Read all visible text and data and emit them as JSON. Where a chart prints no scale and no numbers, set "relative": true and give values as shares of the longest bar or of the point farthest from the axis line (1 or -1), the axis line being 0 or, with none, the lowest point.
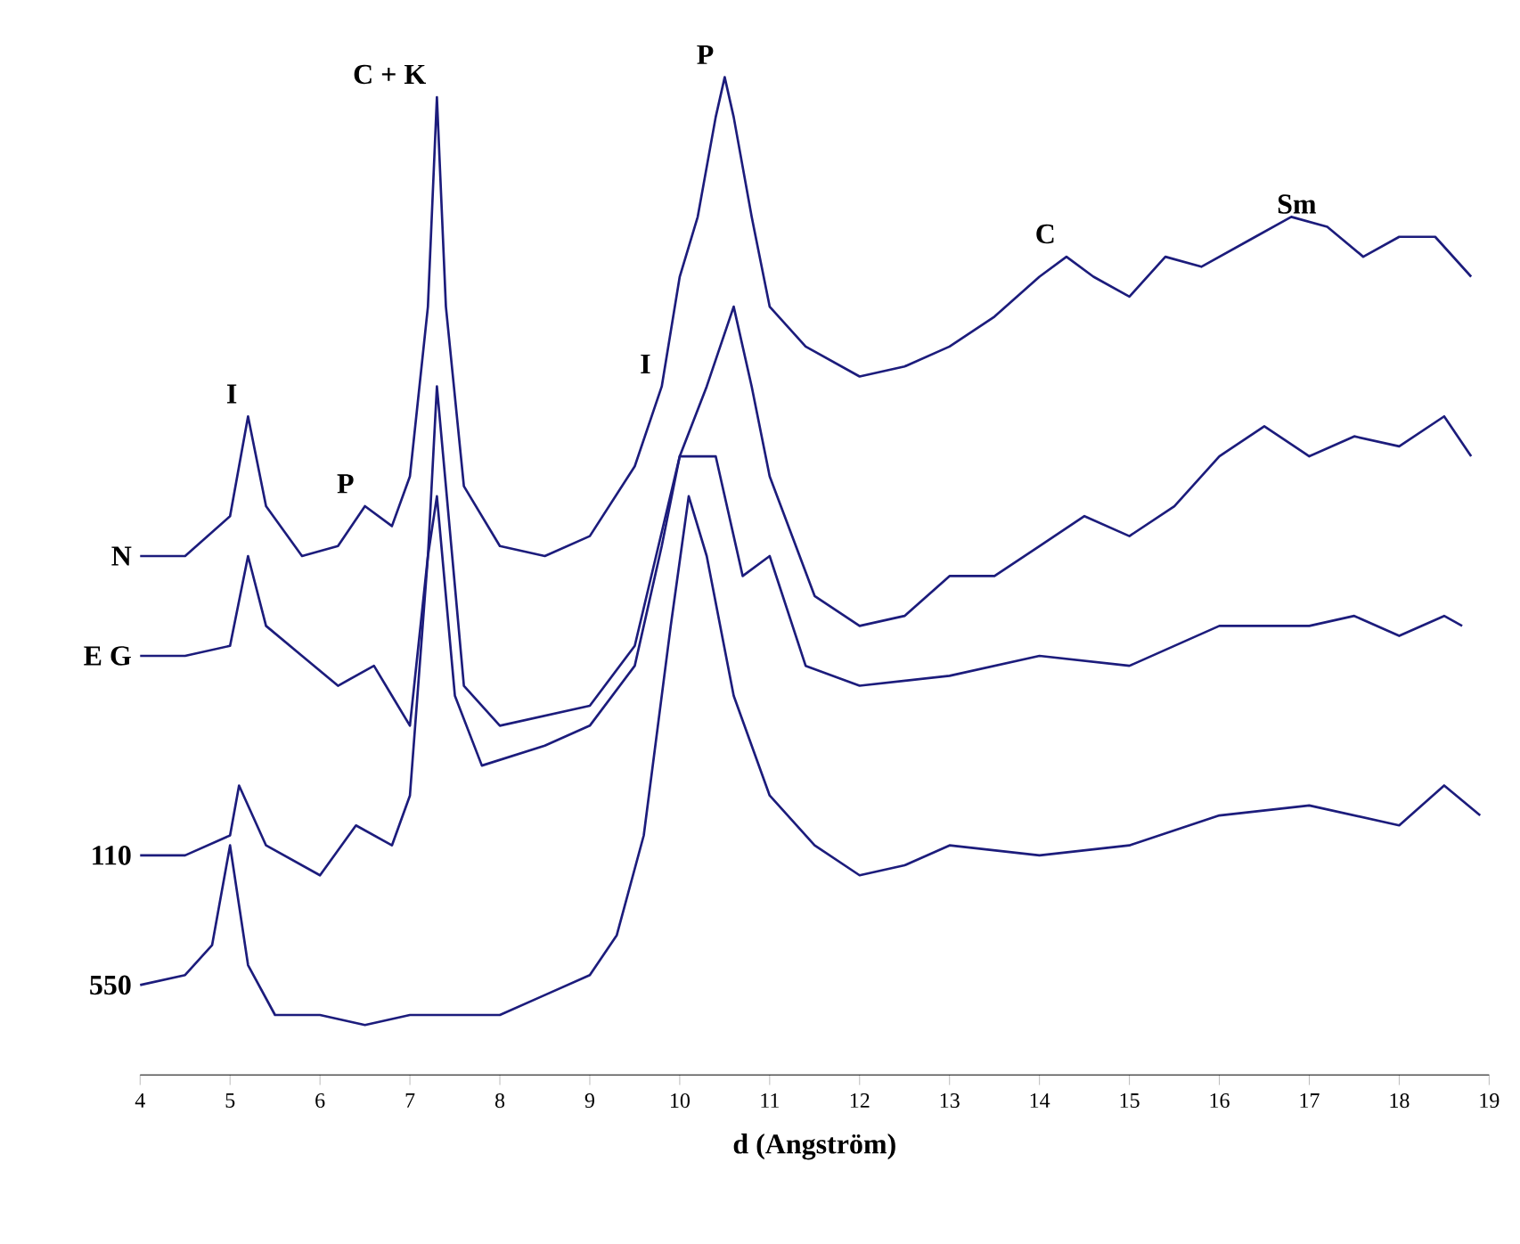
{
  "chart_data": {
    "type": "line",
    "relative": true,
    "xlabel": "d (Angström)",
    "xlim": [
      4,
      19
    ],
    "xticks": [
      4,
      5,
      6,
      7,
      8,
      9,
      10,
      11,
      12,
      13,
      14,
      15,
      16,
      17,
      18,
      19
    ],
    "series": [
      {
        "name": "N",
        "color": "#1c1c7c",
        "x": [
          4,
          4.5,
          5,
          5.2,
          5.4,
          5.8,
          6.2,
          6.5,
          6.8,
          7.0,
          7.2,
          7.3,
          7.4,
          7.6,
          8,
          8.5,
          9,
          9.5,
          9.8,
          10.0,
          10.2,
          10.4,
          10.5,
          10.6,
          10.8,
          11,
          11.4,
          12,
          12.5,
          13,
          13.5,
          14,
          14.3,
          14.6,
          15,
          15.4,
          15.8,
          16.4,
          16.8,
          17.2,
          17.6,
          18,
          18.4,
          18.8
        ],
        "values": [
          0.52,
          0.52,
          0.56,
          0.66,
          0.57,
          0.52,
          0.53,
          0.57,
          0.55,
          0.6,
          0.77,
          0.98,
          0.77,
          0.59,
          0.53,
          0.52,
          0.54,
          0.61,
          0.69,
          0.8,
          0.86,
          0.96,
          1.0,
          0.96,
          0.86,
          0.77,
          0.73,
          0.7,
          0.71,
          0.73,
          0.76,
          0.8,
          0.82,
          0.8,
          0.78,
          0.82,
          0.81,
          0.84,
          0.86,
          0.85,
          0.82,
          0.84,
          0.84,
          0.8
        ]
      },
      {
        "name": "E G",
        "color": "#1c1c7c",
        "x": [
          4,
          4.5,
          5,
          5.2,
          5.4,
          5.8,
          6.2,
          6.6,
          6.8,
          7.0,
          7.2,
          7.3,
          7.6,
          8,
          9,
          9.5,
          10,
          10.3,
          10.6,
          10.8,
          11,
          11.5,
          12,
          12.5,
          13,
          13.5,
          14,
          14.5,
          15,
          15.5,
          16,
          16.5,
          17,
          17.5,
          18,
          18.5,
          18.8
        ],
        "values": [
          0.42,
          0.42,
          0.43,
          0.52,
          0.45,
          0.42,
          0.39,
          0.41,
          0.38,
          0.35,
          0.52,
          0.69,
          0.39,
          0.35,
          0.37,
          0.43,
          0.62,
          0.69,
          0.77,
          0.69,
          0.6,
          0.48,
          0.45,
          0.46,
          0.5,
          0.5,
          0.53,
          0.56,
          0.54,
          0.57,
          0.62,
          0.65,
          0.62,
          0.64,
          0.63,
          0.66,
          0.62
        ]
      },
      {
        "name": "110",
        "color": "#1c1c7c",
        "x": [
          4,
          4.5,
          5,
          5.1,
          5.4,
          6,
          6.4,
          6.8,
          7.0,
          7.2,
          7.3,
          7.5,
          7.8,
          8.5,
          9,
          9.5,
          9.8,
          10.0,
          10.4,
          10.7,
          11,
          11.4,
          12,
          13,
          14,
          15,
          16,
          17,
          17.5,
          18,
          18.5,
          18.7
        ],
        "values": [
          0.22,
          0.22,
          0.24,
          0.29,
          0.23,
          0.2,
          0.25,
          0.23,
          0.28,
          0.52,
          0.58,
          0.38,
          0.31,
          0.33,
          0.35,
          0.41,
          0.53,
          0.62,
          0.62,
          0.5,
          0.52,
          0.41,
          0.39,
          0.4,
          0.42,
          0.41,
          0.45,
          0.45,
          0.46,
          0.44,
          0.46,
          0.45
        ]
      },
      {
        "name": "550",
        "color": "#1c1c7c",
        "x": [
          4,
          4.5,
          4.8,
          5.0,
          5.2,
          5.5,
          6,
          6.5,
          7,
          7.5,
          8,
          8.5,
          9,
          9.3,
          9.6,
          9.9,
          10.1,
          10.3,
          10.6,
          11,
          11.5,
          12,
          12.5,
          13,
          14,
          15,
          16,
          17,
          17.5,
          18,
          18.5,
          18.9
        ],
        "values": [
          0.09,
          0.1,
          0.13,
          0.23,
          0.11,
          0.06,
          0.06,
          0.05,
          0.06,
          0.06,
          0.06,
          0.08,
          0.1,
          0.14,
          0.24,
          0.45,
          0.58,
          0.52,
          0.38,
          0.28,
          0.23,
          0.2,
          0.21,
          0.23,
          0.22,
          0.23,
          0.26,
          0.27,
          0.26,
          0.25,
          0.29,
          0.26
        ]
      }
    ],
    "annotations": [
      {
        "text": "I",
        "x": 5.2,
        "y": 0.66
      },
      {
        "text": "P",
        "x": 6.5,
        "y": 0.57
      },
      {
        "text": "C + K",
        "x": 7.3,
        "y": 0.98
      },
      {
        "text": "I",
        "x": 9.8,
        "y": 0.69
      },
      {
        "text": "P",
        "x": 10.5,
        "y": 1.0
      },
      {
        "text": "C",
        "x": 14.3,
        "y": 0.82
      },
      {
        "text": "Sm",
        "x": 17.2,
        "y": 0.85
      }
    ]
  }
}
